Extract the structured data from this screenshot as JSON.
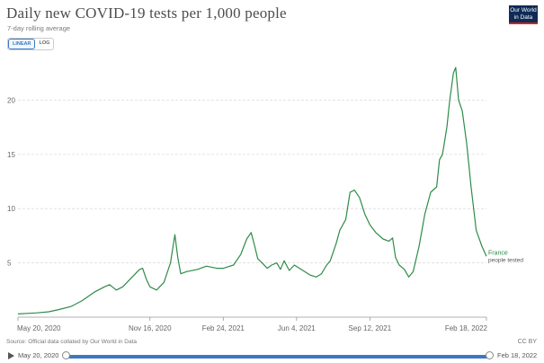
{
  "title": "Daily new COVID-19 tests per 1,000 people",
  "subtitle": "7-day rolling average",
  "logo": {
    "line1": "Our World",
    "line2": "in Data"
  },
  "scale_toggle": {
    "linear": "LINEAR",
    "log": "LOG",
    "selected": "linear"
  },
  "source": "Source: Official data collated by Our World in Data",
  "license": "CC BY",
  "timeline": {
    "start_label": "May 20, 2020",
    "end_label": "Feb 18, 2022"
  },
  "colors": {
    "series": "#2e8b4a",
    "grid": "#dddddd",
    "accent": "#3b78c2"
  },
  "chart_data": {
    "type": "line",
    "title": "Daily new COVID-19 tests per 1,000 people",
    "subtitle": "7-day rolling average",
    "xlabel": "",
    "ylabel": "",
    "ylim": [
      0,
      24
    ],
    "yticks": [
      0,
      5,
      10,
      15,
      20
    ],
    "ytick_labels": [
      "",
      "5",
      "10",
      "15",
      "20"
    ],
    "xlim": [
      "2020-05-20",
      "2022-02-18"
    ],
    "xticks": [
      {
        "date": "2020-05-20",
        "label": "May 20, 2020"
      },
      {
        "date": "2020-11-16",
        "label": "Nov 16, 2020"
      },
      {
        "date": "2021-02-24",
        "label": "Feb 24, 2021"
      },
      {
        "date": "2021-06-04",
        "label": "Jun 4, 2021"
      },
      {
        "date": "2021-09-12",
        "label": "Sep 12, 2021"
      },
      {
        "date": "2022-02-18",
        "label": "Feb 18, 2022"
      }
    ],
    "grid": true,
    "series": [
      {
        "name": "France",
        "label_suffix": "people tested",
        "points": [
          [
            "2020-05-20",
            0.3
          ],
          [
            "2020-06-01",
            0.35
          ],
          [
            "2020-06-15",
            0.4
          ],
          [
            "2020-07-01",
            0.5
          ],
          [
            "2020-07-15",
            0.7
          ],
          [
            "2020-08-01",
            1.0
          ],
          [
            "2020-08-15",
            1.5
          ],
          [
            "2020-09-01",
            2.3
          ],
          [
            "2020-09-15",
            2.8
          ],
          [
            "2020-09-22",
            3.0
          ],
          [
            "2020-10-01",
            2.5
          ],
          [
            "2020-10-10",
            2.8
          ],
          [
            "2020-10-20",
            3.5
          ],
          [
            "2020-10-27",
            4.0
          ],
          [
            "2020-11-02",
            4.4
          ],
          [
            "2020-11-06",
            4.5
          ],
          [
            "2020-11-11",
            3.5
          ],
          [
            "2020-11-16",
            2.8
          ],
          [
            "2020-11-25",
            2.5
          ],
          [
            "2020-12-05",
            3.2
          ],
          [
            "2020-12-14",
            5.0
          ],
          [
            "2020-12-20",
            7.6
          ],
          [
            "2020-12-24",
            5.5
          ],
          [
            "2020-12-28",
            4.0
          ],
          [
            "2021-01-05",
            4.2
          ],
          [
            "2021-01-20",
            4.4
          ],
          [
            "2021-02-01",
            4.7
          ],
          [
            "2021-02-15",
            4.5
          ],
          [
            "2021-02-24",
            4.5
          ],
          [
            "2021-03-10",
            4.8
          ],
          [
            "2021-03-20",
            5.8
          ],
          [
            "2021-03-28",
            7.2
          ],
          [
            "2021-04-03",
            7.8
          ],
          [
            "2021-04-08",
            6.5
          ],
          [
            "2021-04-12",
            5.4
          ],
          [
            "2021-04-18",
            5.0
          ],
          [
            "2021-04-25",
            4.5
          ],
          [
            "2021-05-01",
            4.8
          ],
          [
            "2021-05-08",
            5.0
          ],
          [
            "2021-05-13",
            4.4
          ],
          [
            "2021-05-18",
            5.2
          ],
          [
            "2021-05-25",
            4.3
          ],
          [
            "2021-06-01",
            4.8
          ],
          [
            "2021-06-08",
            4.5
          ],
          [
            "2021-06-15",
            4.2
          ],
          [
            "2021-06-22",
            3.9
          ],
          [
            "2021-07-01",
            3.7
          ],
          [
            "2021-07-08",
            4.0
          ],
          [
            "2021-07-15",
            4.8
          ],
          [
            "2021-07-20",
            5.2
          ],
          [
            "2021-07-28",
            6.8
          ],
          [
            "2021-08-02",
            8.0
          ],
          [
            "2021-08-10",
            9.0
          ],
          [
            "2021-08-16",
            11.5
          ],
          [
            "2021-08-22",
            11.7
          ],
          [
            "2021-08-29",
            11.0
          ],
          [
            "2021-09-05",
            9.5
          ],
          [
            "2021-09-12",
            8.5
          ],
          [
            "2021-09-20",
            7.8
          ],
          [
            "2021-09-30",
            7.2
          ],
          [
            "2021-10-08",
            7.0
          ],
          [
            "2021-10-13",
            7.3
          ],
          [
            "2021-10-17",
            5.5
          ],
          [
            "2021-10-22",
            4.8
          ],
          [
            "2021-10-29",
            4.4
          ],
          [
            "2021-11-04",
            3.7
          ],
          [
            "2021-11-10",
            4.2
          ],
          [
            "2021-11-18",
            6.5
          ],
          [
            "2021-11-26",
            9.5
          ],
          [
            "2021-12-04",
            11.5
          ],
          [
            "2021-12-12",
            12.0
          ],
          [
            "2021-12-16",
            14.5
          ],
          [
            "2021-12-20",
            15.0
          ],
          [
            "2021-12-26",
            17.5
          ],
          [
            "2021-12-30",
            20.0
          ],
          [
            "2022-01-04",
            22.5
          ],
          [
            "2022-01-07",
            23.0
          ],
          [
            "2022-01-11",
            20.0
          ],
          [
            "2022-01-16",
            19.0
          ],
          [
            "2022-01-22",
            16.0
          ],
          [
            "2022-01-28",
            12.0
          ],
          [
            "2022-02-04",
            8.0
          ],
          [
            "2022-02-12",
            6.5
          ],
          [
            "2022-02-18",
            5.6
          ]
        ]
      }
    ]
  }
}
